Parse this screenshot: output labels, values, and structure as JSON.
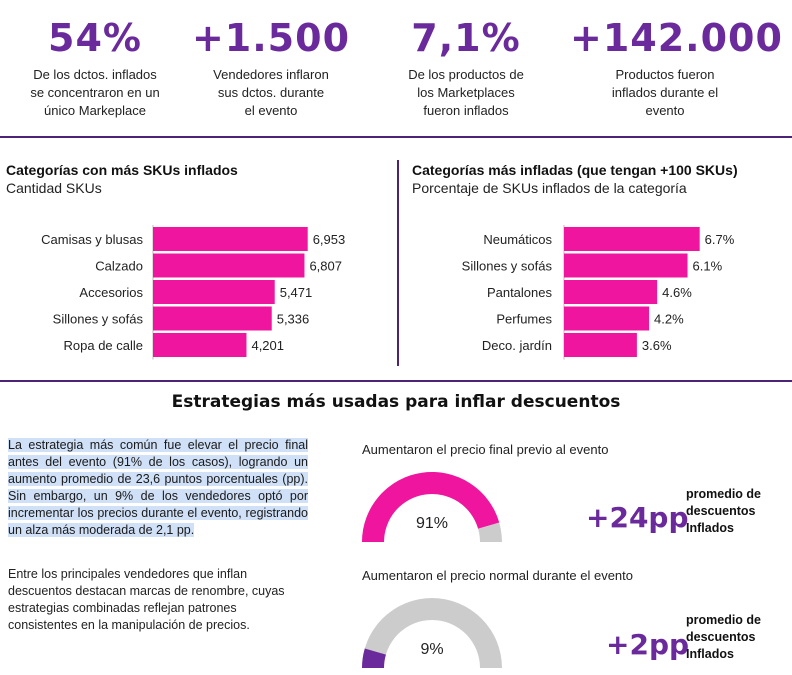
{
  "kpis": [
    {
      "value": "54%",
      "desc_lines": [
        "De los dctos. inflados",
        "se concentraron en un",
        "único Markeplace"
      ]
    },
    {
      "value": "+1.500",
      "desc_lines": [
        "Vendedores inflaron",
        "sus dctos. durante",
        "el evento"
      ]
    },
    {
      "value": "7,1%",
      "desc_lines": [
        "De los productos de",
        "los Marketplaces",
        "fueron inflados"
      ]
    },
    {
      "value": "+142.000",
      "desc_lines": [
        "Productos fueron",
        "inflados durante el",
        "evento"
      ]
    }
  ],
  "colors": {
    "accent": "#6a2a9b",
    "bar": "#f0159f",
    "gauge_bg": "#cccccc",
    "gauge_pink": "#f0159f",
    "gauge_purple": "#6a2a9b",
    "rule": "#4b2377"
  },
  "chart_data": [
    {
      "type": "bar",
      "orientation": "horizontal",
      "title": "Categorías con más SKUs inflados",
      "subtitle": "Cantidad SKUs",
      "categories": [
        "Camisas y blusas",
        "Calzado",
        "Accesorios",
        "Sillones y sofás",
        "Ropa de calle"
      ],
      "values": [
        6953,
        6807,
        5471,
        5336,
        4201
      ],
      "labels": [
        "6,953",
        "6,807",
        "5,471",
        "5,336",
        "4,201"
      ],
      "xlim": [
        0,
        8000
      ]
    },
    {
      "type": "bar",
      "orientation": "horizontal",
      "title": "Categorías más infladas (que tengan +100 SKUs)",
      "subtitle": "Porcentaje de SKUs inflados de la categoría",
      "categories": [
        "Neumáticos",
        "Sillones y sofás",
        "Pantalones",
        "Perfumes",
        "Deco. jardín"
      ],
      "values": [
        6.7,
        6.1,
        4.6,
        4.2,
        3.6
      ],
      "labels": [
        "6.7%",
        "6.1%",
        "4.6%",
        "4.2%",
        "3.6%"
      ],
      "xlim": [
        0,
        8
      ]
    },
    {
      "type": "gauge",
      "title": "Aumentaron el precio final previo al evento",
      "value": 91,
      "label": "91%",
      "max": 100
    },
    {
      "type": "gauge",
      "title": "Aumentaron el precio normal durante el evento",
      "value": 9,
      "label": "9%",
      "max": 100
    }
  ],
  "section_title": "Estrategias más usadas para inflar descuentos",
  "paragraph1": "La estrategia más común fue elevar el precio final antes del evento (91% de los casos), logrando un aumento promedio de 23,6 puntos porcentuales (pp). Sin embargo, un 9% de los vendedores optó por incrementar los precios durante el evento, registrando un alza más moderada de 2,1 pp.",
  "paragraph2": "Entre los principales vendedores que inflan descuentos destacan marcas de renombre, cuyas estrategias combinadas reflejan patrones consistentes en la manipulación de precios.",
  "stats": [
    {
      "value": "+24pp",
      "desc_lines": [
        "promedio de",
        "descuentos",
        "Inflados"
      ]
    },
    {
      "value": "+2pp",
      "desc_lines": [
        "promedio de",
        "descuentos",
        "Inflados"
      ]
    }
  ]
}
